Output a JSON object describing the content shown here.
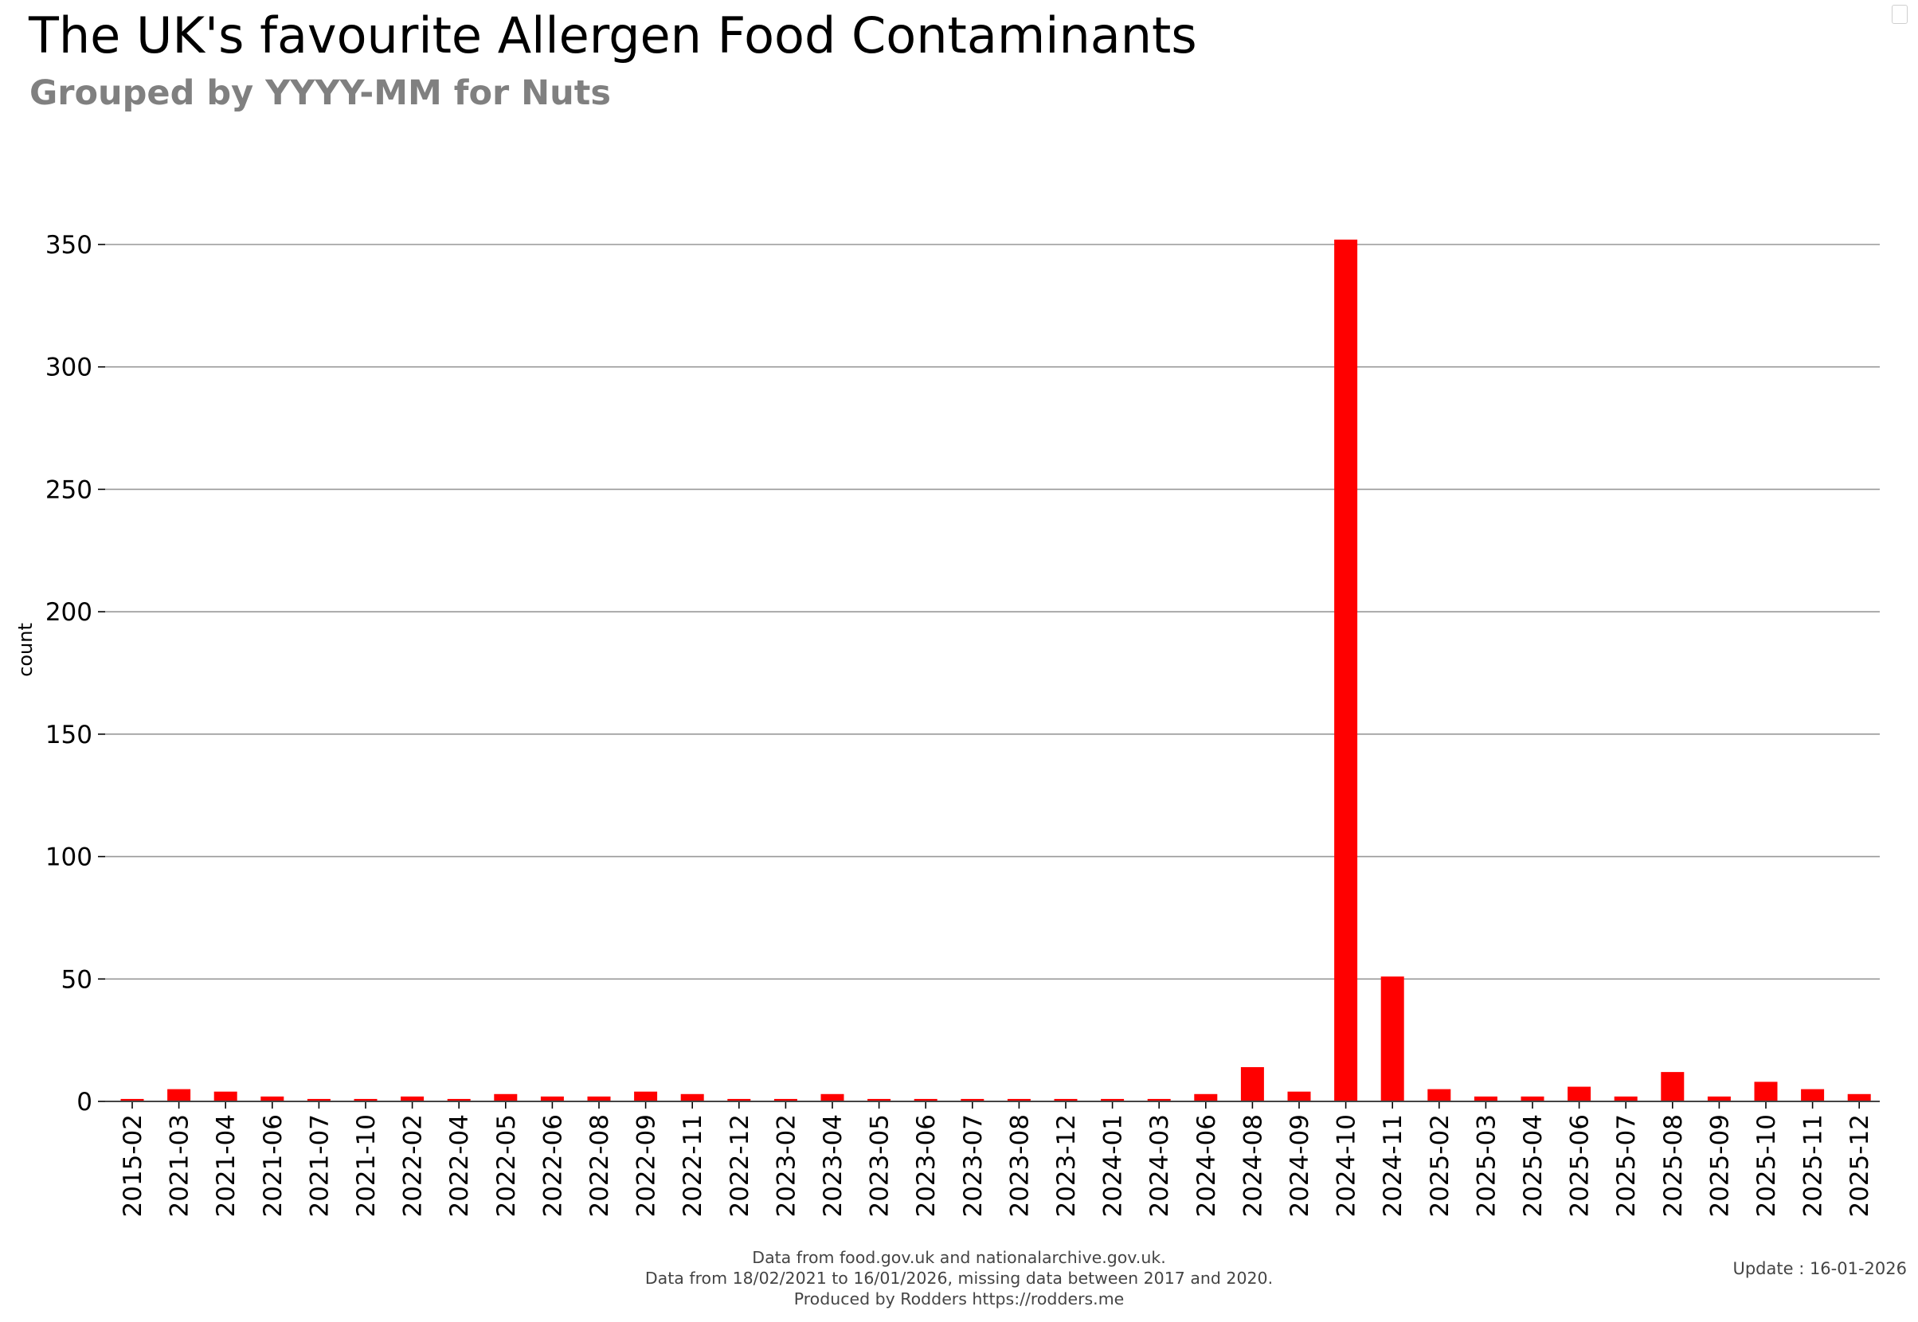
{
  "chart_data": {
    "type": "bar",
    "title": "The UK's favourite Allergen Food Contaminants",
    "subtitle": "Grouped by YYYY-MM for Nuts",
    "xlabel": "",
    "ylabel": "count",
    "ylim": [
      0,
      350
    ],
    "yticks": [
      0,
      50,
      100,
      150,
      200,
      250,
      300,
      350
    ],
    "grid": "horizontal",
    "bar_color": "#ff0000",
    "categories": [
      "2015-02",
      "2021-03",
      "2021-04",
      "2021-06",
      "2021-07",
      "2021-10",
      "2022-02",
      "2022-04",
      "2022-05",
      "2022-06",
      "2022-08",
      "2022-09",
      "2022-11",
      "2022-12",
      "2023-02",
      "2023-04",
      "2023-05",
      "2023-06",
      "2023-07",
      "2023-08",
      "2023-12",
      "2024-01",
      "2024-03",
      "2024-06",
      "2024-08",
      "2024-09",
      "2024-10",
      "2024-11",
      "2025-02",
      "2025-03",
      "2025-04",
      "2025-06",
      "2025-07",
      "2025-08",
      "2025-09",
      "2025-10",
      "2025-11",
      "2025-12"
    ],
    "values": [
      1,
      5,
      4,
      2,
      1,
      1,
      2,
      1,
      3,
      2,
      2,
      4,
      3,
      1,
      1,
      3,
      1,
      1,
      1,
      1,
      1,
      1,
      1,
      3,
      14,
      4,
      352,
      51,
      5,
      2,
      2,
      6,
      2,
      12,
      2,
      8,
      5,
      3
    ]
  },
  "footer": {
    "line1": "Data from food.gov.uk and nationalarchive.gov.uk.",
    "line2": "Data from 18/02/2021 to 16/01/2026, missing data between 2017 and 2020.",
    "line3": "Produced by Rodders https://rodders.me",
    "update": "Update : 16-01-2026"
  }
}
